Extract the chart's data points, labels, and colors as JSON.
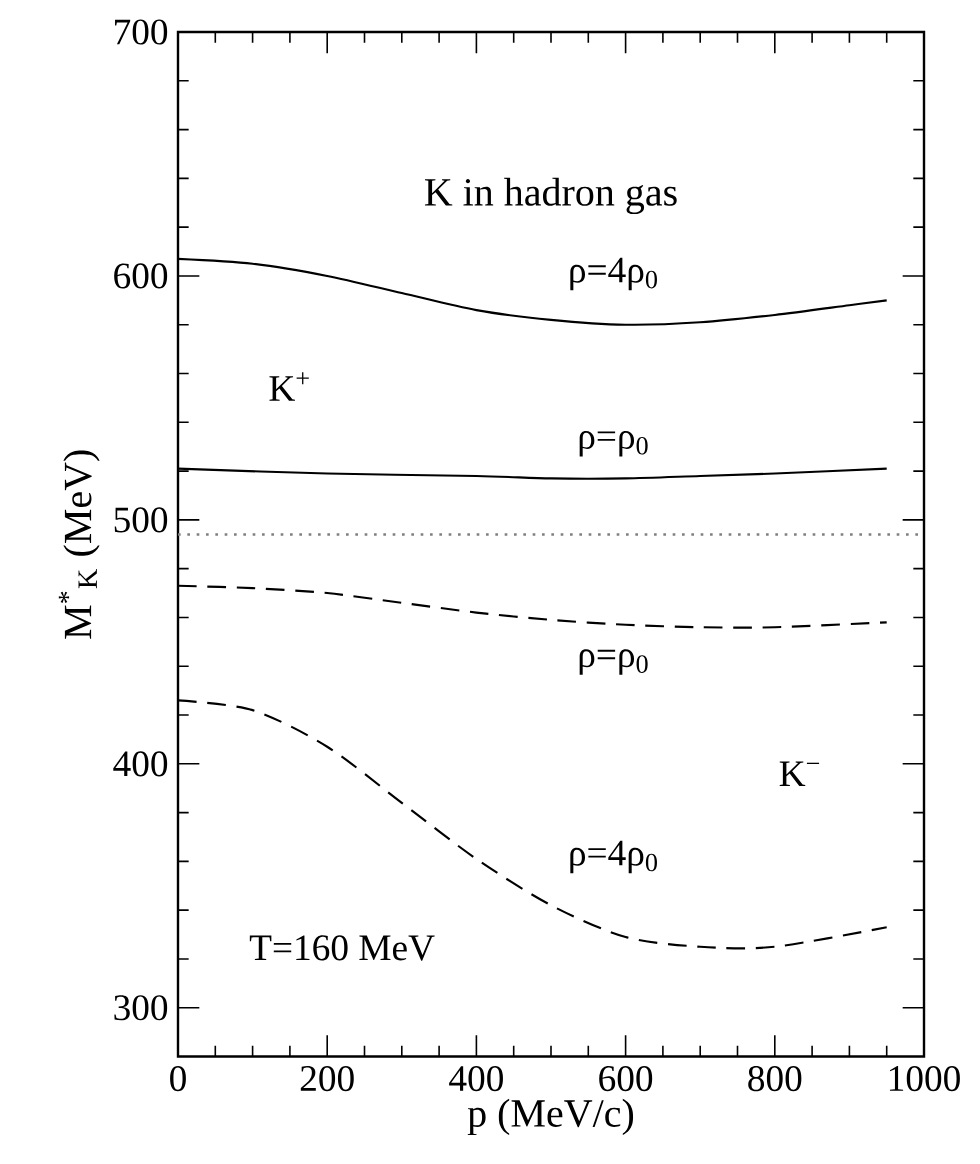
{
  "chart_data": {
    "type": "line",
    "title": "K in hadron gas",
    "xlabel": "p (MeV/c)",
    "ylabel": "M$^{*}$$_{K}$ (MeV)",
    "xlim": [
      0,
      1000
    ],
    "ylim": [
      280,
      700
    ],
    "xticks": [
      0,
      200,
      400,
      600,
      800,
      1000
    ],
    "yticks": [
      300,
      400,
      500,
      600,
      700
    ],
    "marker": "none",
    "series": [
      {
        "name": "ρ=4ρ$_{0}$",
        "color": "#000000",
        "line_style": "solid",
        "x": [
          0,
          100,
          200,
          300,
          400,
          500,
          600,
          700,
          800,
          900,
          950
        ],
        "values": [
          607,
          605,
          600,
          593,
          586,
          582,
          580,
          581,
          584,
          588,
          590
        ]
      },
      {
        "name": "ρ=ρ$_{0}$",
        "color": "#000000",
        "line_style": "solid",
        "x": [
          0,
          200,
          400,
          500,
          600,
          700,
          800,
          950
        ],
        "values": [
          521,
          519,
          518,
          517,
          517,
          518,
          519,
          521
        ]
      },
      {
        "name": "ρ=ρ$_{0}$",
        "color": "#000000",
        "line_style": "dashed",
        "x": [
          0,
          100,
          200,
          300,
          400,
          500,
          600,
          700,
          800,
          950
        ],
        "values": [
          473,
          472,
          470,
          466,
          462,
          459,
          457,
          456,
          456,
          458
        ]
      },
      {
        "name": "ρ=4ρ$_{0}$",
        "color": "#000000",
        "line_style": "dashed",
        "x": [
          0,
          100,
          200,
          300,
          400,
          500,
          600,
          700,
          800,
          950
        ],
        "values": [
          426,
          422,
          407,
          384,
          361,
          342,
          329,
          325,
          325,
          333
        ]
      }
    ],
    "ref_lines": [
      {
        "axis": "y",
        "value": 494,
        "color": "#808080",
        "line_style": "dotted"
      }
    ],
    "annotations": [
      "K$^{+}$",
      "K$^{−}$",
      "T=160 MeV"
    ]
  }
}
